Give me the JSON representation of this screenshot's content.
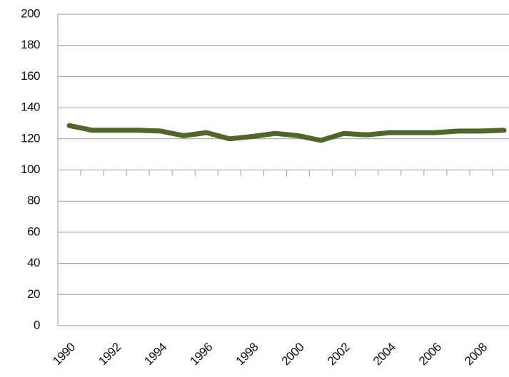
{
  "chart_data": {
    "type": "line",
    "categories": [
      "1990",
      null,
      "1992",
      null,
      "1994",
      null,
      "1996",
      null,
      "1998",
      null,
      "2000",
      null,
      "2002",
      null,
      "2004",
      null,
      "2006",
      null,
      "2008",
      null
    ],
    "series": [
      {
        "name": null,
        "color": "#50662a",
        "values": [
          128.5,
          125.5,
          125.5,
          125.5,
          125,
          122,
          124,
          120,
          121.5,
          123.5,
          122,
          119,
          123.5,
          122.5,
          124,
          124,
          124,
          125,
          125,
          125.5
        ]
      }
    ],
    "ylim": [
      0,
      200
    ],
    "yticks": [
      0,
      20,
      40,
      60,
      80,
      100,
      120,
      140,
      160,
      180,
      200
    ],
    "grid": true
  }
}
